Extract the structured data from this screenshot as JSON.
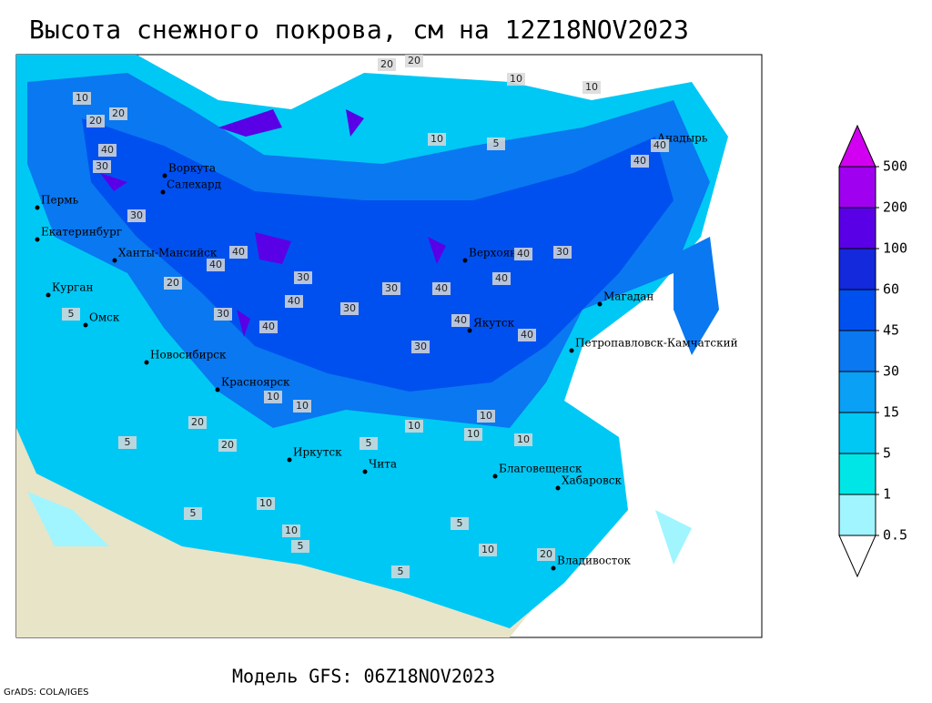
{
  "title": "Высота снежного покрова, см на 12Z18NOV2023",
  "model": "Модель GFS: 06Z18NOV2023",
  "credit": "GrADS: COLA/IGES",
  "colorbar": {
    "levels": [
      0.5,
      1,
      5,
      15,
      30,
      45,
      60,
      100,
      200,
      500
    ],
    "colors": [
      "#ffffff",
      "#a0f5ff",
      "#00e6e6",
      "#00c8f5",
      "#0aa0f5",
      "#0a78f0",
      "#0050f0",
      "#1428dc",
      "#5a00e6",
      "#a000f0",
      "#d200f0"
    ]
  },
  "cities": [
    "Воркута",
    "Салехард",
    "Пермь",
    "Екатеринбург",
    "Ханты-Мансийск",
    "Курган",
    "Омск",
    "Новосибирск",
    "Красноярск",
    "Иркутск",
    "Чита",
    "Верхоянск",
    "Якутск",
    "Магадан",
    "Анадырь",
    "Петропавловск-Камчатский",
    "Благовещенск",
    "Хабаровск",
    "Владивосток"
  ],
  "contour_labels": [
    20,
    20,
    10,
    10,
    20,
    20,
    10,
    5,
    10,
    40,
    30,
    40,
    40,
    30,
    40,
    40,
    30,
    30,
    40,
    40,
    30,
    40,
    30,
    40,
    40,
    30,
    40,
    40,
    20,
    30,
    10,
    10,
    10,
    20,
    20,
    10,
    10,
    5,
    5,
    5,
    10,
    10,
    5,
    10,
    20,
    10,
    5,
    5,
    5
  ]
}
